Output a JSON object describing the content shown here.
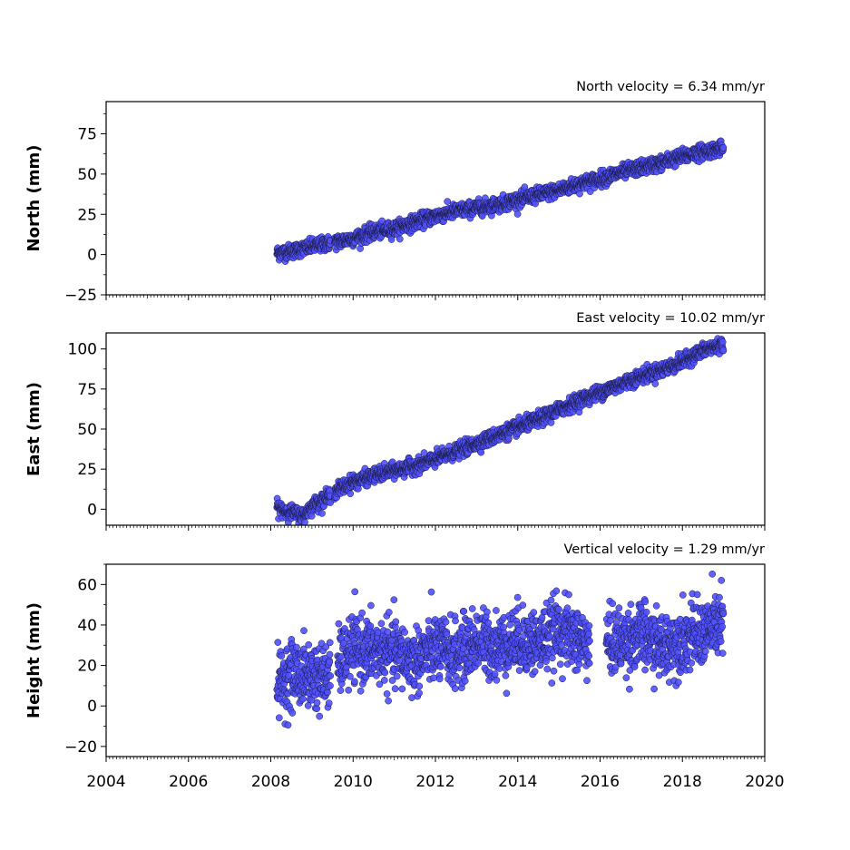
{
  "chart_data": [
    {
      "type": "scatter",
      "title": "North velocity = 6.34 mm/yr",
      "xlabel": "",
      "ylabel": "North (mm)",
      "xlim": [
        2004,
        2020
      ],
      "ylim": [
        -25,
        95
      ],
      "yticks": [
        -25,
        0,
        25,
        50,
        75
      ],
      "ytick_labels": [
        "−25",
        "0",
        "25",
        "50",
        "75"
      ],
      "grid": false,
      "marker_color": "#5050ff",
      "series": [
        {
          "x": [
            2008.15,
            2008.5,
            2009.0,
            2009.4,
            2009.6,
            2010.0,
            2010.5,
            2011.0,
            2011.5,
            2012.0,
            2012.5,
            2013.0,
            2013.5,
            2014.0,
            2014.5,
            2015.0,
            2015.5,
            2016.0,
            2016.5,
            2017.0,
            2017.5,
            2018.0,
            2018.5,
            2019.0
          ],
          "y": [
            1,
            2,
            5,
            7,
            8,
            10,
            14,
            16,
            20,
            24,
            27,
            29,
            31,
            34,
            37,
            40,
            44,
            47,
            51,
            54,
            57,
            61,
            64,
            66
          ]
        }
      ]
    },
    {
      "type": "scatter",
      "title": "East velocity = 10.02 mm/yr",
      "xlabel": "",
      "ylabel": "East (mm)",
      "xlim": [
        2004,
        2020
      ],
      "ylim": [
        -10,
        110
      ],
      "yticks": [
        0,
        25,
        50,
        75,
        100
      ],
      "ytick_labels": [
        "0",
        "25",
        "50",
        "75",
        "100"
      ],
      "grid": false,
      "marker_color": "#5050ff",
      "series": [
        {
          "x": [
            2008.15,
            2008.5,
            2008.8,
            2009.0,
            2009.4,
            2009.6,
            2010.0,
            2010.5,
            2011.0,
            2011.5,
            2012.0,
            2012.5,
            2013.0,
            2013.5,
            2014.0,
            2014.5,
            2015.0,
            2015.5,
            2016.0,
            2016.5,
            2017.0,
            2017.5,
            2018.0,
            2018.5,
            2019.0
          ],
          "y": [
            1,
            -2,
            -4,
            2,
            8,
            12,
            17,
            21,
            24,
            27,
            31,
            36,
            41,
            46,
            51,
            56,
            62,
            68,
            73,
            78,
            83,
            87,
            92,
            99,
            103
          ]
        }
      ]
    },
    {
      "type": "scatter",
      "title": "Vertical velocity = 1.29 mm/yr",
      "xlabel": "",
      "ylabel": "Height (mm)",
      "xlim": [
        2004,
        2020
      ],
      "ylim": [
        -25,
        70
      ],
      "yticks": [
        -20,
        0,
        20,
        40,
        60
      ],
      "ytick_labels": [
        "−20",
        "0",
        "20",
        "40",
        "60"
      ],
      "xticks": [
        2004,
        2006,
        2008,
        2010,
        2012,
        2014,
        2016,
        2018,
        2020
      ],
      "xtick_labels": [
        "2004",
        "2006",
        "2008",
        "2010",
        "2012",
        "2014",
        "2016",
        "2018",
        "2020"
      ],
      "grid": false,
      "marker_color": "#5050ff",
      "series": [
        {
          "x": [
            2008.15,
            2008.5,
            2009.0,
            2009.4,
            2009.7,
            2010.0,
            2010.5,
            2011.0,
            2011.5,
            2012.0,
            2012.5,
            2013.0,
            2013.5,
            2014.0,
            2014.5,
            2015.0,
            2015.5,
            2016.2,
            2016.5,
            2017.0,
            2017.5,
            2018.0,
            2018.5,
            2019.0
          ],
          "y": [
            10,
            16,
            15,
            14,
            22,
            28,
            27,
            26,
            22,
            29,
            25,
            32,
            29,
            33,
            31,
            38,
            32,
            31,
            32,
            35,
            29,
            33,
            36,
            42
          ]
        }
      ]
    }
  ]
}
